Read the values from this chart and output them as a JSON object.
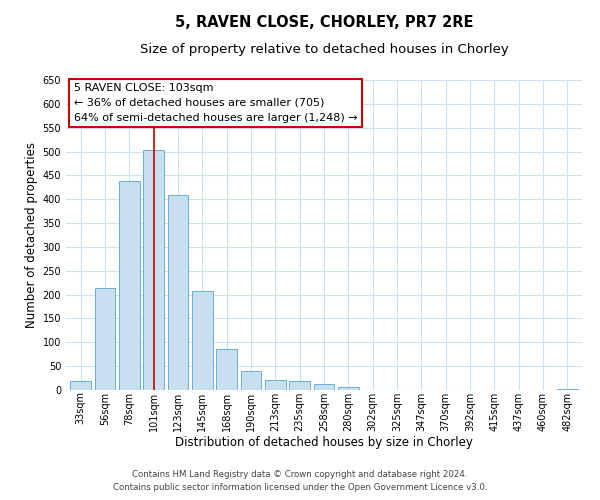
{
  "title": "5, RAVEN CLOSE, CHORLEY, PR7 2RE",
  "subtitle": "Size of property relative to detached houses in Chorley",
  "xlabel": "Distribution of detached houses by size in Chorley",
  "ylabel": "Number of detached properties",
  "bar_labels": [
    "33sqm",
    "56sqm",
    "78sqm",
    "101sqm",
    "123sqm",
    "145sqm",
    "168sqm",
    "190sqm",
    "213sqm",
    "235sqm",
    "258sqm",
    "280sqm",
    "302sqm",
    "325sqm",
    "347sqm",
    "370sqm",
    "392sqm",
    "415sqm",
    "437sqm",
    "460sqm",
    "482sqm"
  ],
  "bar_values": [
    18,
    213,
    438,
    503,
    408,
    207,
    87,
    40,
    22,
    18,
    12,
    7,
    0,
    0,
    0,
    0,
    0,
    0,
    0,
    0,
    3
  ],
  "bar_color": "#c8dff0",
  "bar_edge_color": "#6baed6",
  "property_bar_index": 3,
  "property_line_color": "#cc0000",
  "annotation_text_line1": "5 RAVEN CLOSE: 103sqm",
  "annotation_text_line2": "← 36% of detached houses are smaller (705)",
  "annotation_text_line3": "64% of semi-detached houses are larger (1,248) →",
  "annotation_box_color": "#cc0000",
  "ylim": [
    0,
    650
  ],
  "yticks": [
    0,
    50,
    100,
    150,
    200,
    250,
    300,
    350,
    400,
    450,
    500,
    550,
    600,
    650
  ],
  "footer_line1": "Contains HM Land Registry data © Crown copyright and database right 2024.",
  "footer_line2": "Contains public sector information licensed under the Open Government Licence v3.0.",
  "bg_color": "#ffffff",
  "grid_color": "#cce0f0",
  "title_fontsize": 10.5,
  "subtitle_fontsize": 9.5,
  "axis_label_fontsize": 8.5,
  "tick_fontsize": 7,
  "annotation_fontsize": 8,
  "footer_fontsize": 6.2
}
